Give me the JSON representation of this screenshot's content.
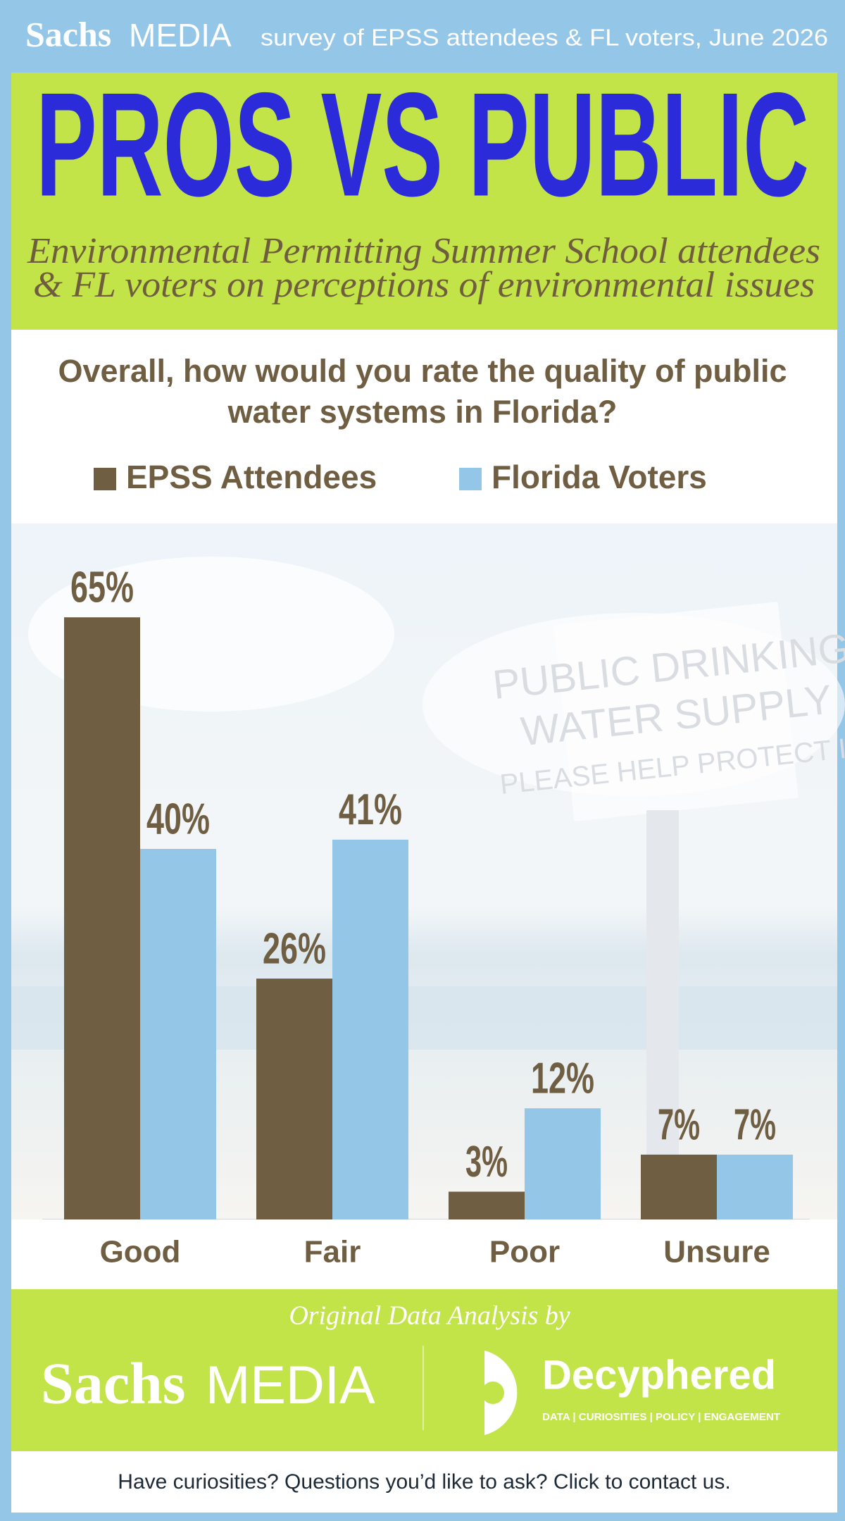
{
  "header": {
    "brand_bold": "Sachs",
    "brand_light": "MEDIA",
    "survey_note": "survey of EPSS attendees & FL voters, June 2026"
  },
  "banner": {
    "title": "PROS VS PUBLIC",
    "subtitle_line1": "Environmental Permitting Summer School attendees",
    "subtitle_line2": "& FL voters on perceptions of environmental issues"
  },
  "background_photo": {
    "sign_lines": [
      "PUBLIC DRINKING",
      "WATER SUPPLY",
      "PLEASE HELP PROTECT IT"
    ]
  },
  "chart_data": {
    "type": "bar",
    "title": "Overall, how would you rate the quality of public water systems in Florida?",
    "categories": [
      "Good",
      "Fair",
      "Poor",
      "Unsure"
    ],
    "series": [
      {
        "name": "EPSS Attendees",
        "color": "#6f5e42",
        "values": [
          65,
          26,
          3,
          7
        ],
        "value_labels": [
          "65%",
          "26%",
          "3%",
          "7%"
        ]
      },
      {
        "name": "Florida Voters",
        "color": "#94c6e8",
        "values": [
          40,
          41,
          12,
          7
        ],
        "value_labels": [
          "40%",
          "41%",
          "12%",
          "7%"
        ]
      }
    ]
  },
  "footer": {
    "credit": "Original Data Analysis by",
    "brand_bold": "Sachs",
    "brand_light": "MEDIA",
    "partner": "Decyphered",
    "partner_tagline": "DATA | CURIOSITIES | POLICY | ENGAGEMENT",
    "contact": "Have curiosities? Questions you’d like to ask? Click to contact us."
  }
}
